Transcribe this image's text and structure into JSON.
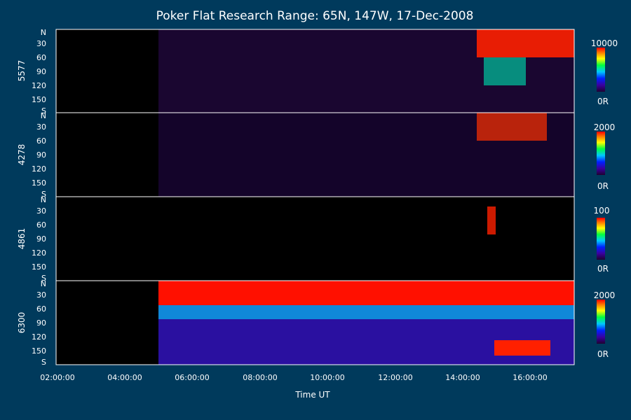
{
  "chart_data": {
    "type": "heatmap",
    "title": "Poker Flat Research Range: 65N, 147W, 17-Dec-2008",
    "xlabel": "Time UT",
    "x_ticks": [
      "02:00:00",
      "04:00:00",
      "06:00:00",
      "08:00:00",
      "10:00:00",
      "12:00:00",
      "14:00:00",
      "16:00:00"
    ],
    "x_range_hours": [
      1.5,
      17.3
    ],
    "data_start_hours": 4.95,
    "y_ticks": [
      "N",
      "30",
      "60",
      "90",
      "120",
      "150",
      "S"
    ],
    "y_range_deg": [
      0,
      180
    ],
    "colormap": "rainbow (purple-blue-cyan-green-yellow-orange-red)",
    "panels": [
      {
        "name": "5577",
        "colorbar_max": "10000",
        "colorbar_min": "0R"
      },
      {
        "name": "4278",
        "colorbar_max": "2000",
        "colorbar_min": "0R"
      },
      {
        "name": "4861",
        "colorbar_max": "100",
        "colorbar_min": "0R"
      },
      {
        "name": "6300",
        "colorbar_max": "2000",
        "colorbar_min": "0R"
      }
    ]
  }
}
